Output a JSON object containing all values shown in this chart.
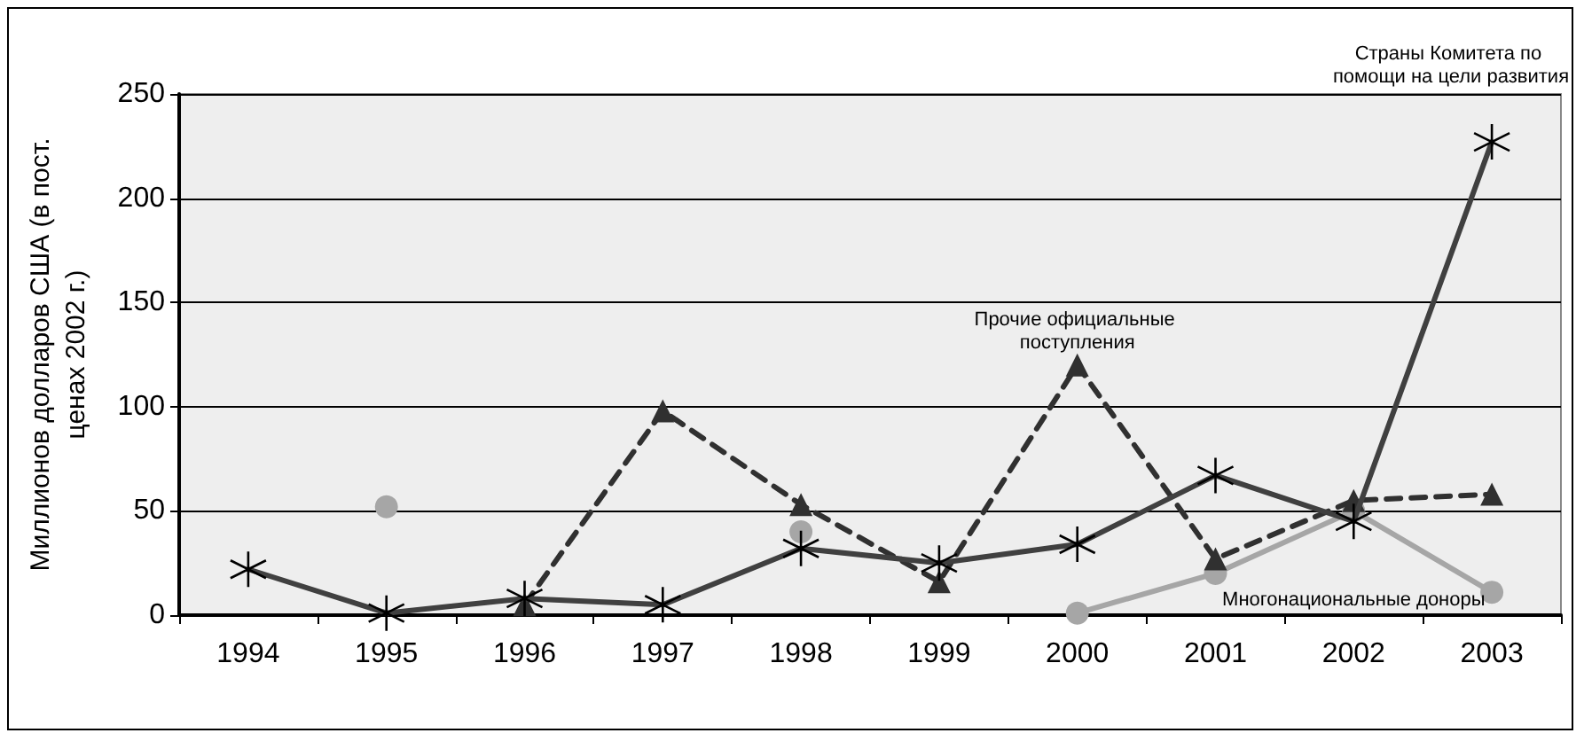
{
  "chart_data": {
    "type": "line",
    "ylabel": "Миллионов долларов США (в пост. ценах 2002 г.)",
    "categories": [
      "1994",
      "1995",
      "1996",
      "1997",
      "1998",
      "1999",
      "2000",
      "2001",
      "2002",
      "2003"
    ],
    "series": [
      {
        "color": "#404040",
        "marker": "cross",
        "line_style": "solid",
        "values": [
          22,
          1,
          8,
          5,
          32,
          25,
          34,
          67,
          45,
          227
        ]
      },
      {
        "color": "#303030",
        "marker": "triangle",
        "line_style": "dashed",
        "values": [
          null,
          null,
          5,
          98,
          53,
          16,
          120,
          27,
          55,
          58
        ]
      },
      {
        "color": "#a6a6a6",
        "marker": "circle",
        "line_style": "solid",
        "values": [
          null,
          52,
          null,
          null,
          40,
          null,
          1,
          20,
          50,
          11
        ]
      }
    ],
    "annotations": [
      {
        "text": "Страны Комитета по помощи на цели развития",
        "x": "2003",
        "y": 227
      },
      {
        "text": "Прочие официальные поступления",
        "x": "2000",
        "y": 120
      },
      {
        "text": "Многонациональные доноры",
        "x": "2003",
        "y": 11
      }
    ],
    "ylim": [
      0,
      250
    ],
    "yticks": [
      0,
      50,
      100,
      150,
      200,
      250
    ],
    "grid": "y"
  }
}
